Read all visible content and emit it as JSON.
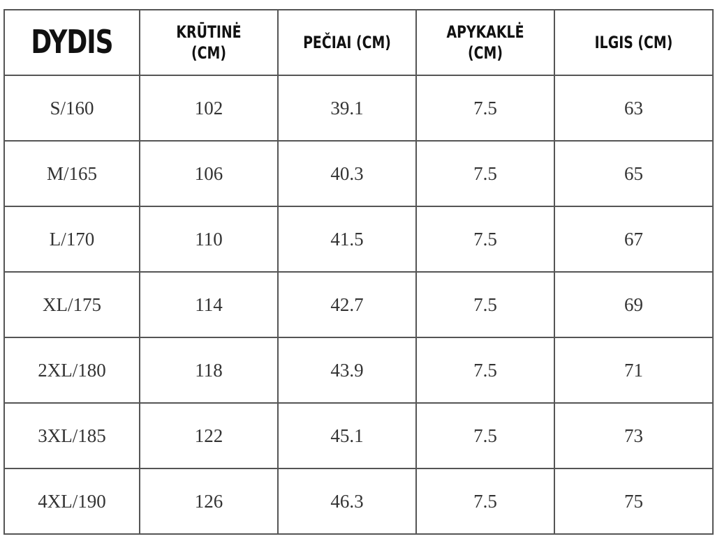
{
  "headers": [
    "DYDIS",
    "KRŪTINĖ (CM)",
    "PEČIAI (CM)",
    "APYKAKLĖ (CM)",
    "ILGIS (CM)"
  ],
  "rows": [
    [
      "S/160",
      "102",
      "39.1",
      "7.5",
      "63"
    ],
    [
      "M/165",
      "106",
      "40.3",
      "7.5",
      "65"
    ],
    [
      "L/170",
      "110",
      "41.5",
      "7.5",
      "67"
    ],
    [
      "XL/175",
      "114",
      "42.7",
      "7.5",
      "69"
    ],
    [
      "2XL/180",
      "118",
      "43.9",
      "7.5",
      "71"
    ],
    [
      "3XL/185",
      "122",
      "45.1",
      "7.5",
      "73"
    ],
    [
      "4XL/190",
      "126",
      "46.3",
      "7.5",
      "75"
    ]
  ]
}
